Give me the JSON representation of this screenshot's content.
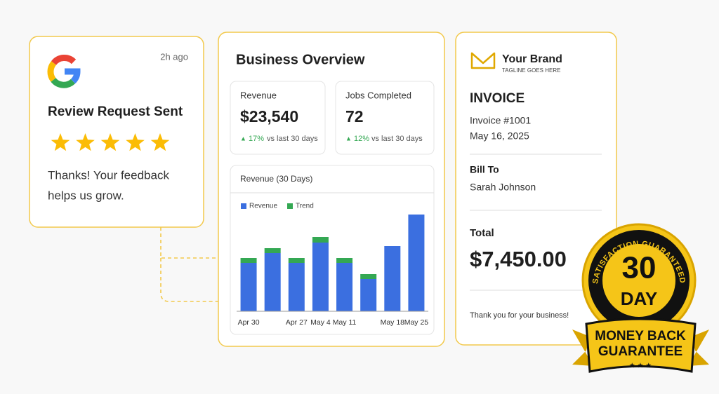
{
  "review": {
    "time": "2h ago",
    "title": "Review Request Sent",
    "rating": 5,
    "message_lines": [
      "Thanks! Your feedback",
      "helps us grow."
    ]
  },
  "overview": {
    "title": "Business Overview",
    "metrics": [
      {
        "label": "Revenue",
        "value": "$23,540",
        "change": "17%",
        "comparison": "vs last 30 days"
      },
      {
        "label": "Jobs Completed",
        "value": "72",
        "change": "12%",
        "comparison": "vs last 30 days"
      }
    ]
  },
  "chart_data": {
    "type": "bar",
    "stacked": true,
    "title": "Revenue (30 Days)",
    "categories": [
      "Apr 30",
      null,
      "Apr 27",
      "May 4",
      "May 11",
      null,
      "May 18",
      "May 25"
    ],
    "series": [
      {
        "name": "Revenue",
        "color": "#3b6fe0",
        "values": [
          69,
          83,
          69,
          98,
          69,
          46,
          93,
          138
        ]
      },
      {
        "name": "Trend",
        "color": "#34a853",
        "values": [
          7,
          7,
          7,
          8,
          7,
          7,
          0,
          0
        ]
      }
    ],
    "ylim": [
      0,
      150
    ]
  },
  "invoice": {
    "brand": "Your Brand",
    "tagline": "TAGLINE GOES HERE",
    "heading": "INVOICE",
    "number": "Invoice #1001",
    "date": "May 16, 2025",
    "bill_to_label": "Bill To",
    "bill_to": "Sarah Johnson",
    "total_label": "Total",
    "total": "$7,450.00",
    "footer": "Thank you for your business!"
  },
  "badge": {
    "arc_text": "SATISFACTION GUARANTEED",
    "number": "30",
    "unit": "DAY",
    "ribbon_lines": [
      "MONEY BACK",
      "GUARANTEE"
    ]
  }
}
